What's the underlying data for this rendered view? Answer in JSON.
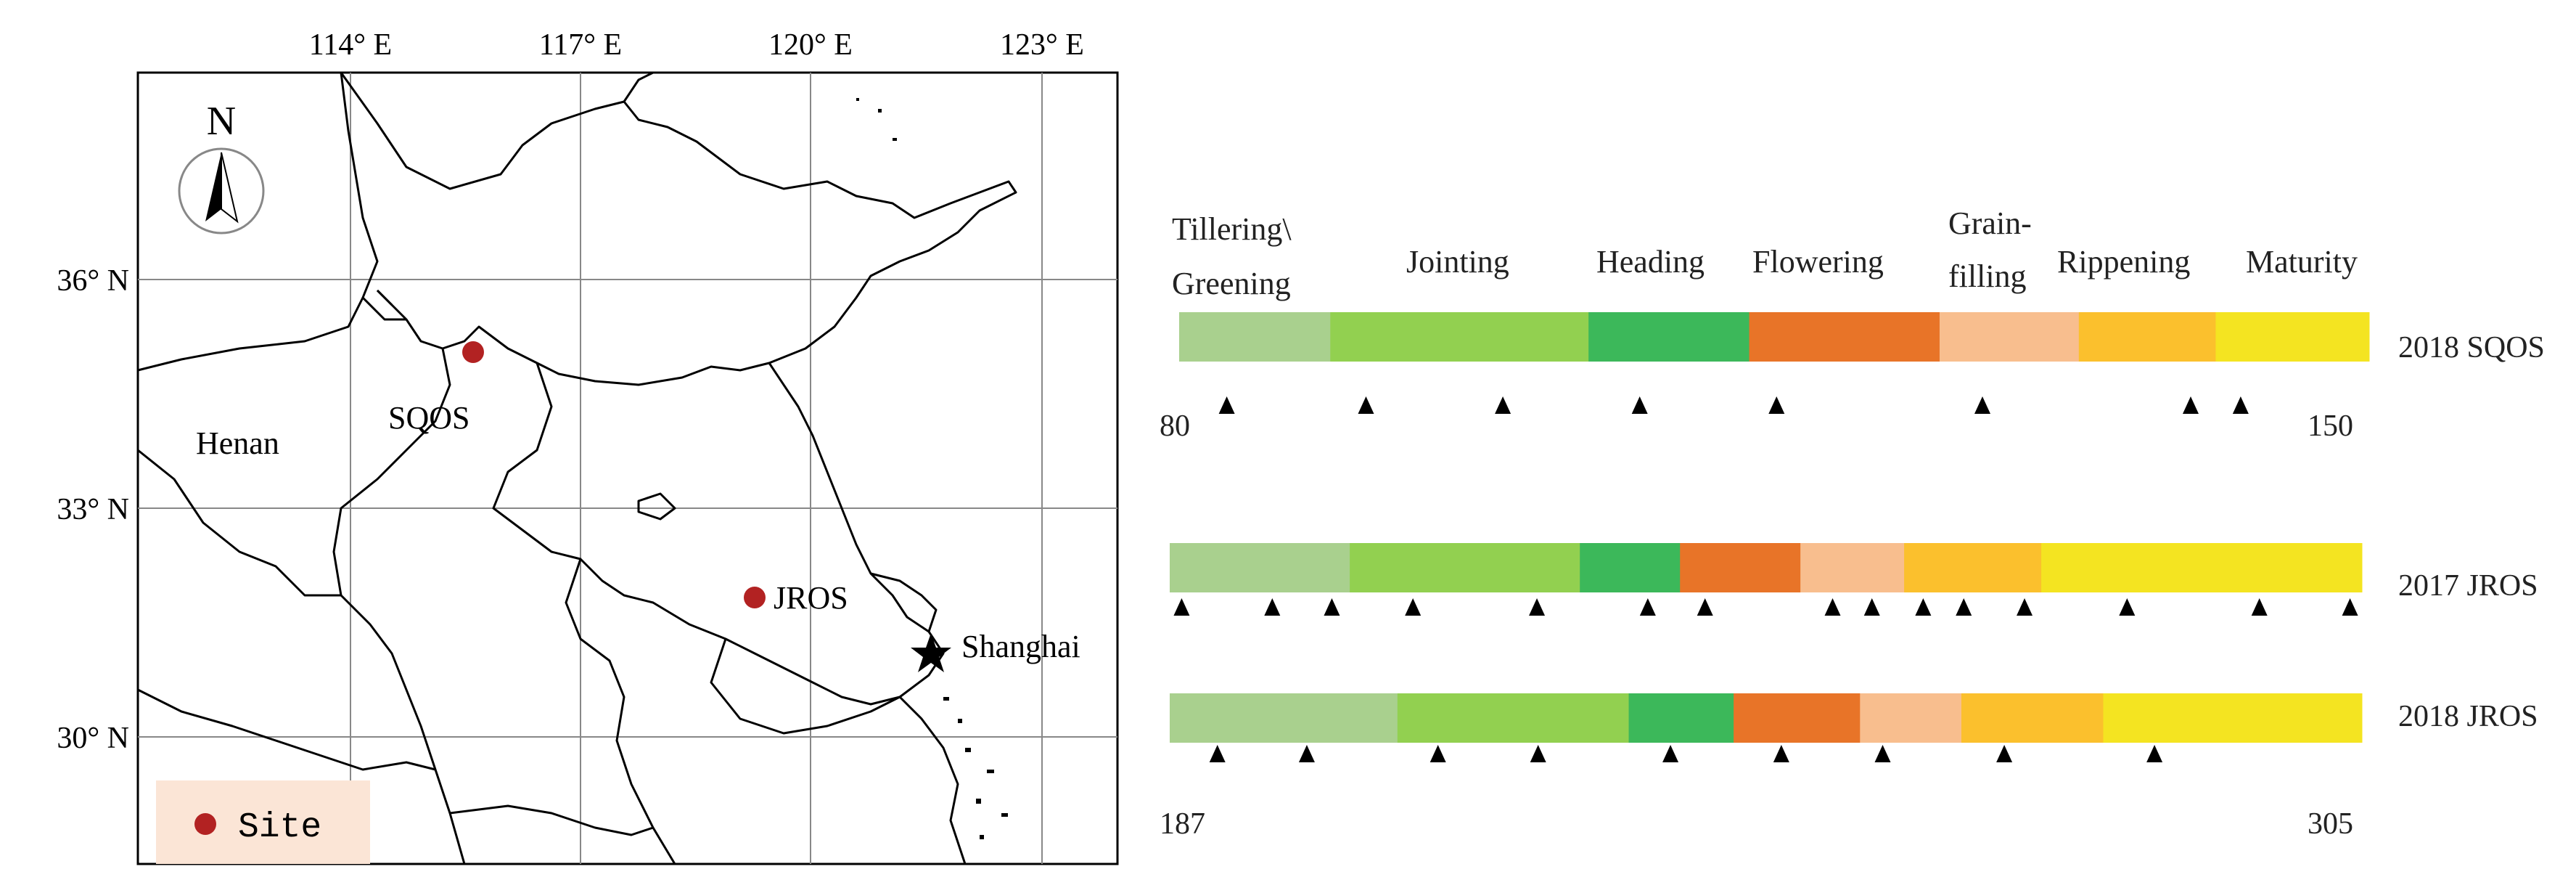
{
  "map": {
    "lon_labels": [
      "114° E",
      "117° E",
      "120° E",
      "123° E"
    ],
    "lat_labels": [
      "36° N",
      "33° N",
      "30° N"
    ],
    "north_label": "N",
    "region_label": "Henan",
    "sites": [
      {
        "name": "SQOS"
      },
      {
        "name": "JROS"
      }
    ],
    "city": {
      "name": "Shanghai"
    },
    "legend": {
      "label": "Site"
    },
    "colors": {
      "site": "#b22222",
      "legend_bg": "#fbe5d6"
    }
  },
  "phenology": {
    "stages": [
      "Tillering\\",
      "Greening",
      "Jointing",
      "Heading",
      "Flowering",
      "Grain-",
      "filling",
      "Rippening",
      "Maturity"
    ],
    "stage_colors": [
      "#a9d08e",
      "#92d050",
      "#3cb85a",
      "#e87428",
      "#f8be8e",
      "#fbc02d",
      "#f4e421"
    ],
    "rows": [
      {
        "label": "2018 SQOS",
        "start": "80",
        "end": "150",
        "fractions": [
          0.127,
          0.217,
          0.135,
          0.16,
          0.117,
          0.115,
          0.129
        ],
        "markers": [
          0.04,
          0.157,
          0.272,
          0.387,
          0.502,
          0.675,
          0.85,
          0.892
        ]
      },
      {
        "label": "2017 JROS",
        "fractions": [
          0.151,
          0.193,
          0.084,
          0.101,
          0.087,
          0.115,
          0.269
        ],
        "markers": [
          0.01,
          0.086,
          0.136,
          0.204,
          0.308,
          0.401,
          0.449,
          0.556,
          0.589,
          0.632,
          0.666,
          0.717,
          0.803,
          0.914,
          0.99
        ]
      },
      {
        "label": "2018 JROS",
        "start": "187",
        "end": "305",
        "fractions": [
          0.191,
          0.194,
          0.088,
          0.106,
          0.085,
          0.119,
          0.217
        ],
        "markers": [
          0.04,
          0.115,
          0.225,
          0.309,
          0.42,
          0.513,
          0.598,
          0.7,
          0.826
        ]
      }
    ]
  }
}
